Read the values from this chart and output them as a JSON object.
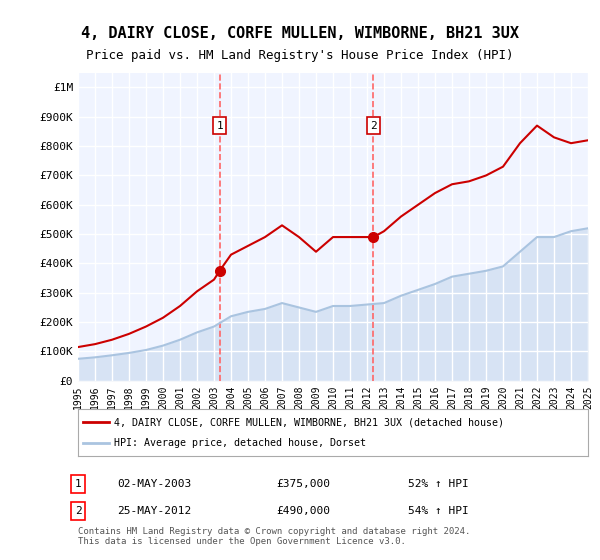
{
  "title": "4, DAIRY CLOSE, CORFE MULLEN, WIMBORNE, BH21 3UX",
  "subtitle": "Price paid vs. HM Land Registry's House Price Index (HPI)",
  "title_fontsize": 11,
  "subtitle_fontsize": 9,
  "xlabel": "",
  "ylabel": "",
  "ylim": [
    0,
    1050000
  ],
  "yticks": [
    0,
    100000,
    200000,
    300000,
    400000,
    500000,
    600000,
    700000,
    800000,
    900000,
    1000000
  ],
  "ytick_labels": [
    "£0",
    "£100K",
    "£200K",
    "£300K",
    "£400K",
    "£500K",
    "£600K",
    "£700K",
    "£800K",
    "£900K",
    "£1M"
  ],
  "background_color": "#ffffff",
  "plot_bg_color": "#f0f4ff",
  "grid_color": "#ffffff",
  "hpi_color": "#aac4e0",
  "price_color": "#cc0000",
  "marker_color": "#cc0000",
  "sale1_x": 2003.33,
  "sale1_y": 375000,
  "sale1_label": "1",
  "sale2_x": 2012.38,
  "sale2_y": 490000,
  "sale2_label": "2",
  "vline_color": "#ff6666",
  "vline_style": "--",
  "legend_price_label": "4, DAIRY CLOSE, CORFE MULLEN, WIMBORNE, BH21 3UX (detached house)",
  "legend_hpi_label": "HPI: Average price, detached house, Dorset",
  "table_entries": [
    {
      "num": "1",
      "date": "02-MAY-2003",
      "price": "£375,000",
      "hpi": "52% ↑ HPI"
    },
    {
      "num": "2",
      "date": "25-MAY-2012",
      "price": "£490,000",
      "hpi": "54% ↑ HPI"
    }
  ],
  "footnote": "Contains HM Land Registry data © Crown copyright and database right 2024.\nThis data is licensed under the Open Government Licence v3.0.",
  "hpi_data": {
    "years": [
      1995,
      1996,
      1997,
      1998,
      1999,
      2000,
      2001,
      2002,
      2003,
      2004,
      2005,
      2006,
      2007,
      2008,
      2009,
      2010,
      2011,
      2012,
      2013,
      2014,
      2015,
      2016,
      2017,
      2018,
      2019,
      2020,
      2021,
      2022,
      2023,
      2024,
      2025
    ],
    "values": [
      75000,
      80000,
      87000,
      95000,
      105000,
      120000,
      140000,
      165000,
      185000,
      220000,
      235000,
      245000,
      265000,
      250000,
      235000,
      255000,
      255000,
      260000,
      265000,
      290000,
      310000,
      330000,
      355000,
      365000,
      375000,
      390000,
      440000,
      490000,
      490000,
      510000,
      520000
    ]
  },
  "price_data": {
    "years": [
      1995,
      1996,
      1997,
      1998,
      1999,
      2000,
      2001,
      2002,
      2003,
      2003.33,
      2004,
      2005,
      2006,
      2007,
      2008,
      2009,
      2010,
      2011,
      2012,
      2012.38,
      2013,
      2014,
      2015,
      2016,
      2017,
      2018,
      2019,
      2020,
      2021,
      2022,
      2023,
      2024,
      2025
    ],
    "values": [
      115000,
      125000,
      140000,
      160000,
      185000,
      215000,
      255000,
      305000,
      345000,
      375000,
      430000,
      460000,
      490000,
      530000,
      490000,
      440000,
      490000,
      490000,
      490000,
      490000,
      510000,
      560000,
      600000,
      640000,
      670000,
      680000,
      700000,
      730000,
      810000,
      870000,
      830000,
      810000,
      820000
    ]
  },
  "xmin": 1995,
  "xmax": 2025,
  "xtick_years": [
    1995,
    1996,
    1997,
    1998,
    1999,
    2000,
    2001,
    2002,
    2003,
    2004,
    2005,
    2006,
    2007,
    2008,
    2009,
    2010,
    2011,
    2012,
    2013,
    2014,
    2015,
    2016,
    2017,
    2018,
    2019,
    2020,
    2021,
    2022,
    2023,
    2024,
    2025
  ]
}
